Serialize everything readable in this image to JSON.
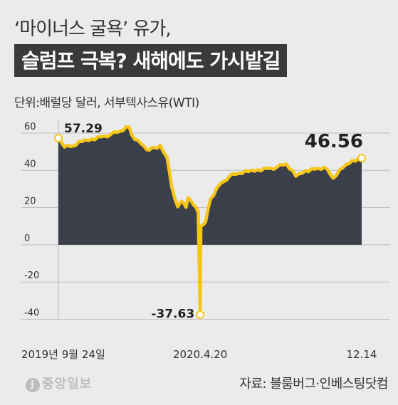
{
  "header": {
    "title_line1": "‘마이너스 굴욕’ 유가,",
    "title_line2": "슬럼프 극복? 새해에도 가시밭길",
    "unit_note": "단위:배럴당 달러, 서부텍사스유(WTI)"
  },
  "footer": {
    "logo": "중앙일보",
    "source": "자료: 블룸버그·인베스팅닷컴"
  },
  "colors": {
    "line": "#f5c518",
    "area": "#3b3f4a",
    "background": "#ebebeb",
    "text": "#333333"
  },
  "chart_data": {
    "type": "area",
    "title": "",
    "xlabel": "",
    "ylabel": "",
    "ylim": [
      -40,
      70
    ],
    "yticks": [
      60,
      40,
      20,
      0,
      -20,
      -40
    ],
    "xtick_labels": [
      "2019년 9월 24일",
      "2020.4.20",
      "12.14"
    ],
    "grid": true,
    "annotations": [
      {
        "label": "57.29",
        "x": "2019-09-24",
        "y": 57.29
      },
      {
        "label": "-37.63",
        "x": "2020-04-20",
        "y": -37.63
      },
      {
        "label": "46.56",
        "x": "2020-12-14",
        "y": 46.56
      }
    ],
    "series": [
      {
        "values": [
          {
            "x": "2019-09-24",
            "y": 57.29
          },
          {
            "x": "2019-10-03",
            "y": 52.5
          },
          {
            "x": "2019-10-15",
            "y": 53.0
          },
          {
            "x": "2019-10-29",
            "y": 55.5
          },
          {
            "x": "2019-11-12",
            "y": 56.8
          },
          {
            "x": "2019-11-26",
            "y": 58.0
          },
          {
            "x": "2019-12-10",
            "y": 59.2
          },
          {
            "x": "2019-12-24",
            "y": 61.0
          },
          {
            "x": "2020-01-06",
            "y": 63.3
          },
          {
            "x": "2020-01-10",
            "y": 59.0
          },
          {
            "x": "2020-01-24",
            "y": 54.2
          },
          {
            "x": "2020-02-05",
            "y": 50.8
          },
          {
            "x": "2020-02-21",
            "y": 53.4
          },
          {
            "x": "2020-03-02",
            "y": 47.0
          },
          {
            "x": "2020-03-09",
            "y": 31.1
          },
          {
            "x": "2020-03-18",
            "y": 20.4
          },
          {
            "x": "2020-03-23",
            "y": 23.4
          },
          {
            "x": "2020-03-30",
            "y": 20.1
          },
          {
            "x": "2020-04-02",
            "y": 25.3
          },
          {
            "x": "2020-04-14",
            "y": 20.1
          },
          {
            "x": "2020-04-17",
            "y": 18.3
          },
          {
            "x": "2020-04-20",
            "y": -37.63
          },
          {
            "x": "2020-04-21",
            "y": 10.0
          },
          {
            "x": "2020-04-28",
            "y": 12.3
          },
          {
            "x": "2020-05-05",
            "y": 24.6
          },
          {
            "x": "2020-05-19",
            "y": 32.5
          },
          {
            "x": "2020-06-02",
            "y": 36.8
          },
          {
            "x": "2020-06-16",
            "y": 38.4
          },
          {
            "x": "2020-06-30",
            "y": 39.3
          },
          {
            "x": "2020-07-14",
            "y": 40.3
          },
          {
            "x": "2020-07-28",
            "y": 41.0
          },
          {
            "x": "2020-08-11",
            "y": 41.6
          },
          {
            "x": "2020-08-25",
            "y": 43.4
          },
          {
            "x": "2020-09-08",
            "y": 36.8
          },
          {
            "x": "2020-09-22",
            "y": 39.8
          },
          {
            "x": "2020-10-06",
            "y": 40.7
          },
          {
            "x": "2020-10-20",
            "y": 41.7
          },
          {
            "x": "2020-11-02",
            "y": 35.8
          },
          {
            "x": "2020-11-16",
            "y": 41.3
          },
          {
            "x": "2020-11-30",
            "y": 45.3
          },
          {
            "x": "2020-12-14",
            "y": 46.56
          }
        ]
      }
    ]
  }
}
